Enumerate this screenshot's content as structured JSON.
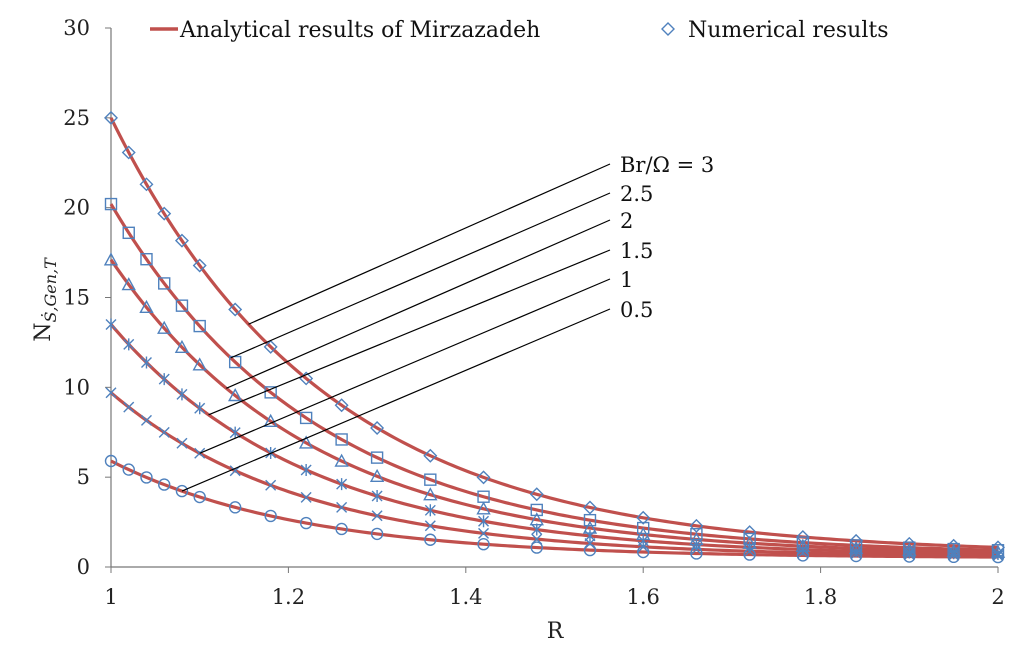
{
  "chart_data": {
    "type": "line",
    "title": "",
    "xlabel": "R",
    "ylabel": "N",
    "ylabel_sub": "Ṡ,Gen,T",
    "xlim": [
      1,
      2
    ],
    "ylim": [
      0,
      30
    ],
    "xticks": [
      "1",
      "1.2",
      "1.4",
      "1.6",
      "1.8",
      "2"
    ],
    "yticks": [
      "0",
      "5",
      "10",
      "15",
      "20",
      "25",
      "30"
    ],
    "grid": false,
    "legend": [
      {
        "label": "Analytical results of Mirzazadeh",
        "kind": "line",
        "color": "#c0504d"
      },
      {
        "label": "Numerical results",
        "kind": "marker",
        "marker": "diamond",
        "color": "#4f81bd"
      }
    ],
    "annotation_prefix": "Br/Ω = ",
    "x_numeric": [
      1.0,
      1.02,
      1.04,
      1.06,
      1.08,
      1.1,
      1.14,
      1.18,
      1.22,
      1.26,
      1.3,
      1.36,
      1.42,
      1.48,
      1.54,
      1.6,
      1.66,
      1.72,
      1.78,
      1.84,
      1.9,
      1.95,
      2.0
    ],
    "series": [
      {
        "name": "Br/Ω = 3",
        "label": "3",
        "marker": "diamond",
        "a": 0.7,
        "b": 24.3,
        "k": 4.13
      },
      {
        "name": "Br/Ω = 2.5",
        "label": "2.5",
        "marker": "square",
        "a": 0.66,
        "b": 19.54,
        "k": 4.27
      },
      {
        "name": "Br/Ω = 2",
        "label": "2",
        "marker": "triangle",
        "a": 0.62,
        "b": 16.48,
        "k": 4.38
      },
      {
        "name": "Br/Ω = 1.5",
        "label": "1.5",
        "marker": "star",
        "a": 0.58,
        "b": 12.92,
        "k": 4.48
      },
      {
        "name": "Br/Ω = 1",
        "label": "1",
        "marker": "x",
        "a": 0.54,
        "b": 9.16,
        "k": 4.59
      },
      {
        "name": "Br/Ω = 0.5",
        "label": "0.5",
        "marker": "circle",
        "a": 0.5,
        "b": 5.4,
        "k": 4.64
      }
    ],
    "line_color": "#c0504d",
    "marker_color": "#4f81bd"
  }
}
